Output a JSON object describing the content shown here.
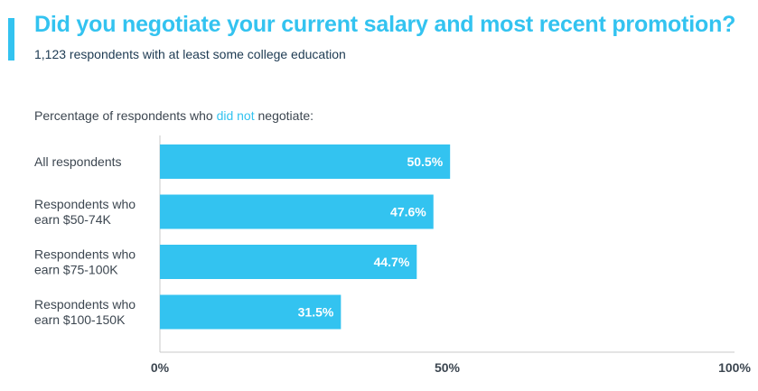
{
  "header": {
    "title": "Did you negotiate your current salary and most recent promotion?",
    "subtitle": "1,123 respondents with at least some college education"
  },
  "caption": {
    "before": "Percentage of respondents who ",
    "highlight": "did not",
    "after": " negotiate:"
  },
  "colors": {
    "accent": "#33c3f0",
    "subtitle": "#1d3a52",
    "text": "#3c4650"
  },
  "chart_data": {
    "type": "bar",
    "orientation": "horizontal",
    "categories": [
      [
        "All respondents"
      ],
      [
        "Respondents who",
        "earn $50-74K"
      ],
      [
        "Respondents who",
        "earn $75-100K"
      ],
      [
        "Respondents who",
        "earn $100-150K"
      ]
    ],
    "values": [
      50.5,
      47.6,
      44.7,
      31.5
    ],
    "value_labels": [
      "50.5%",
      "47.6%",
      "44.7%",
      "31.5%"
    ],
    "xlim": [
      0,
      100
    ],
    "xticks": [
      0,
      50,
      100
    ],
    "xtick_labels": [
      "0%",
      "50%",
      "100%"
    ],
    "grid": false,
    "legend": "none"
  }
}
